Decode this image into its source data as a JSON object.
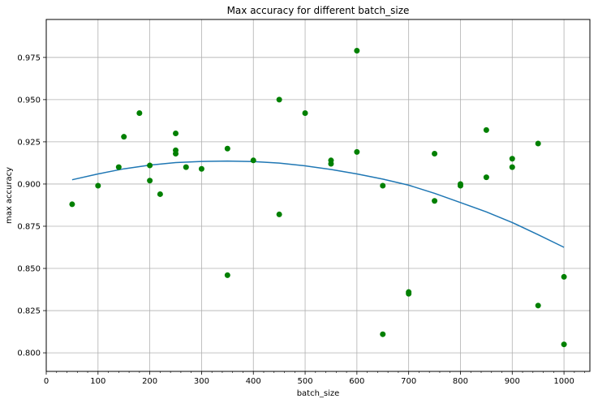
{
  "chart_data": {
    "type": "scatter",
    "title": "Max accuracy for different batch_size",
    "xlabel": "batch_size",
    "ylabel": "max accuracy",
    "xlim": [
      0,
      1050
    ],
    "ylim": [
      0.789,
      0.9975
    ],
    "grid": true,
    "xticks": [
      0,
      100,
      200,
      300,
      400,
      500,
      600,
      700,
      800,
      900,
      1000
    ],
    "xtick_labels": [
      "0",
      "100",
      "200",
      "300",
      "400",
      "500",
      "600",
      "700",
      "800",
      "900",
      "1000"
    ],
    "yticks": [
      0.8,
      0.825,
      0.85,
      0.875,
      0.9,
      0.925,
      0.95,
      0.975
    ],
    "ytick_labels": [
      "0.800",
      "0.825",
      "0.850",
      "0.875",
      "0.900",
      "0.925",
      "0.950",
      "0.975"
    ],
    "colors": {
      "points": "#008000",
      "trend": "#1f77b4",
      "grid": "#b0b0b0"
    },
    "points": [
      [
        50,
        0.888
      ],
      [
        100,
        0.899
      ],
      [
        140,
        0.91
      ],
      [
        150,
        0.928
      ],
      [
        180,
        0.942
      ],
      [
        200,
        0.911
      ],
      [
        200,
        0.902
      ],
      [
        220,
        0.894
      ],
      [
        250,
        0.93
      ],
      [
        250,
        0.92
      ],
      [
        250,
        0.918
      ],
      [
        270,
        0.91
      ],
      [
        300,
        0.909
      ],
      [
        350,
        0.921
      ],
      [
        350,
        0.846
      ],
      [
        400,
        0.914
      ],
      [
        450,
        0.95
      ],
      [
        450,
        0.882
      ],
      [
        500,
        0.942
      ],
      [
        550,
        0.914
      ],
      [
        550,
        0.912
      ],
      [
        600,
        0.979
      ],
      [
        600,
        0.919
      ],
      [
        650,
        0.899
      ],
      [
        650,
        0.811
      ],
      [
        700,
        0.836
      ],
      [
        700,
        0.835
      ],
      [
        750,
        0.918
      ],
      [
        750,
        0.89
      ],
      [
        800,
        0.9
      ],
      [
        800,
        0.899
      ],
      [
        850,
        0.932
      ],
      [
        850,
        0.904
      ],
      [
        900,
        0.915
      ],
      [
        900,
        0.91
      ],
      [
        950,
        0.924
      ],
      [
        950,
        0.828
      ],
      [
        1000,
        0.845
      ],
      [
        1000,
        0.805
      ]
    ],
    "trend_line": {
      "x": [
        50,
        100,
        150,
        200,
        250,
        300,
        350,
        400,
        450,
        500,
        550,
        600,
        650,
        700,
        750,
        800,
        850,
        900,
        950,
        1000
      ],
      "y": [
        0.9025,
        0.906,
        0.909,
        0.9112,
        0.9127,
        0.9134,
        0.9136,
        0.9133,
        0.9124,
        0.9108,
        0.9086,
        0.906,
        0.9029,
        0.8993,
        0.8945,
        0.889,
        0.8835,
        0.8772,
        0.87,
        0.8625
      ]
    }
  }
}
